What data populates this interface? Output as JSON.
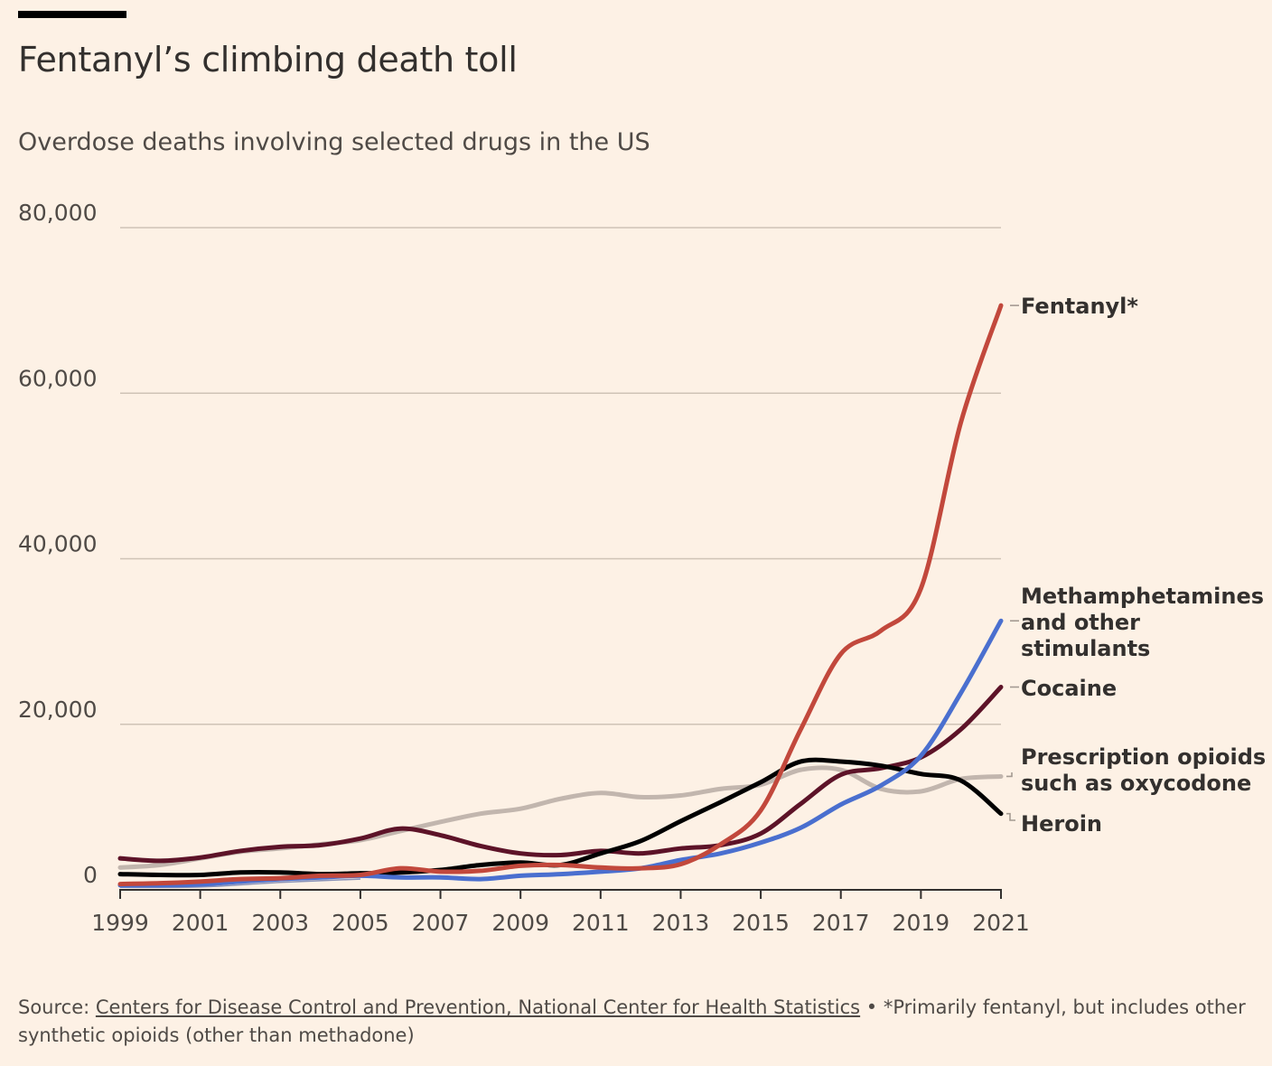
{
  "header": {
    "title": "Fentanyl’s climbing death toll",
    "subtitle": "Overdose deaths involving selected drugs in the US"
  },
  "footer": {
    "source_prefix": "Source: ",
    "source_link": "Centers for Disease Control and Prevention, National Center for Health Statistics",
    "bullet": " • ",
    "note": "*Primarily fentanyl, but includes other synthetic opioids (other than methadone)"
  },
  "colors": {
    "background": "#fdf1e5",
    "grid": "#cfc3b6",
    "fentanyl": "#c2483c",
    "methamphetamines": "#4a6fcf",
    "cocaine": "#5d1328",
    "prescription": "#c2b6ae",
    "heroin": "#000000",
    "thin_trace": "#8a93b8"
  },
  "chart_data": {
    "type": "line",
    "title": "Fentanyl’s climbing death toll",
    "subtitle": "Overdose deaths involving selected drugs in the US",
    "xlabel": "",
    "ylabel": "",
    "xlim": [
      1999,
      2021
    ],
    "ylim": [
      0,
      80000
    ],
    "x_ticks": [
      "1999",
      "2001",
      "2003",
      "2005",
      "2007",
      "2009",
      "2011",
      "2013",
      "2015",
      "2017",
      "2019",
      "2021"
    ],
    "y_ticks": [
      {
        "value": 0,
        "label": "0"
      },
      {
        "value": 20000,
        "label": "20,000"
      },
      {
        "value": 40000,
        "label": "40,000"
      },
      {
        "value": 60000,
        "label": "60,000"
      },
      {
        "value": 80000,
        "label": "80,000"
      }
    ],
    "grid": true,
    "legend": "direct labels at right end of lines",
    "x": [
      1999,
      2000,
      2001,
      2002,
      2003,
      2004,
      2005,
      2006,
      2007,
      2008,
      2009,
      2010,
      2011,
      2012,
      2013,
      2014,
      2015,
      2016,
      2017,
      2018,
      2019,
      2020,
      2021
    ],
    "series": [
      {
        "id": "prescription",
        "name": "Prescription opioids such as oxycodone",
        "label_lines": [
          "Prescription opioids",
          "such as oxycodone"
        ],
        "values": [
          2700,
          3000,
          3800,
          4600,
          5000,
          5500,
          6000,
          7100,
          8200,
          9200,
          9800,
          11000,
          11700,
          11200,
          11400,
          12200,
          12700,
          14500,
          14500,
          12200,
          11900,
          13400,
          13700
        ]
      },
      {
        "id": "cocaine",
        "name": "Cocaine",
        "label_lines": [
          "Cocaine"
        ],
        "values": [
          3800,
          3500,
          3900,
          4700,
          5200,
          5400,
          6200,
          7400,
          6600,
          5300,
          4400,
          4200,
          4700,
          4400,
          5000,
          5400,
          6800,
          10400,
          13900,
          14700,
          16000,
          19400,
          24500
        ]
      },
      {
        "id": "heroin",
        "name": "Heroin",
        "label_lines": [
          "Heroin"
        ],
        "values": [
          1900,
          1800,
          1800,
          2100,
          2100,
          1900,
          2000,
          2100,
          2400,
          3000,
          3300,
          3000,
          4400,
          5900,
          8300,
          10600,
          13000,
          15500,
          15500,
          15000,
          14000,
          13200,
          9200
        ]
      },
      {
        "id": "methamphetamines",
        "name": "Methamphetamines and other stimulants",
        "label_lines": [
          "Methamphetamines",
          "and other",
          "stimulants"
        ],
        "values": [
          550,
          550,
          650,
          1000,
          1300,
          1500,
          1700,
          1500,
          1500,
          1300,
          1700,
          1900,
          2200,
          2600,
          3600,
          4400,
          5700,
          7500,
          10300,
          12600,
          16200,
          23800,
          32500
        ]
      },
      {
        "id": "fentanyl",
        "name": "Fentanyl*",
        "label_lines": [
          "Fentanyl*"
        ],
        "values": [
          700,
          800,
          1000,
          1300,
          1400,
          1700,
          1800,
          2600,
          2200,
          2300,
          2900,
          3000,
          2700,
          2600,
          3100,
          5500,
          9600,
          19400,
          28500,
          31300,
          36400,
          56500,
          70600
        ]
      }
    ]
  }
}
